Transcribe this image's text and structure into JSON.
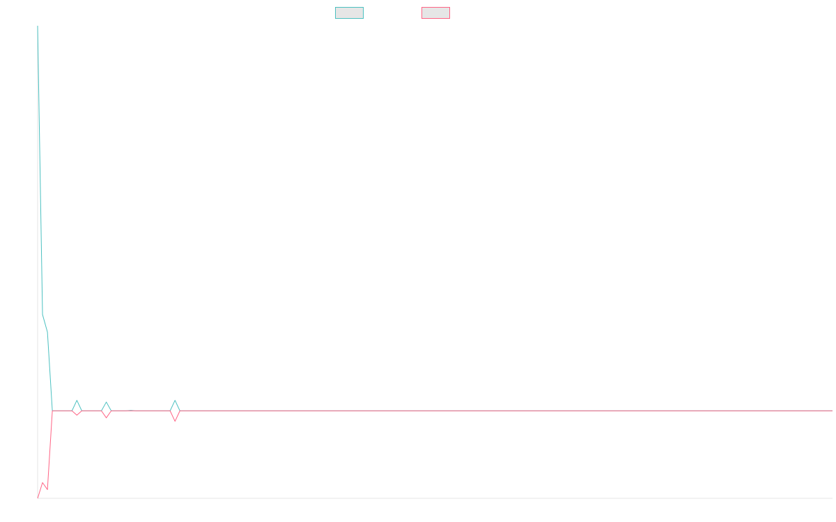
{
  "chart_data": {
    "type": "line",
    "title": "",
    "xlabel": "",
    "ylabel": "",
    "legend_position": "top-center",
    "grid": false,
    "y_axis_visible": true,
    "x_axis_visible": true,
    "x": [
      0,
      1,
      2,
      3,
      4,
      5,
      6,
      7,
      8,
      9,
      10,
      11,
      12,
      13,
      14,
      15,
      16,
      17,
      18,
      19,
      20,
      21,
      22,
      23,
      24,
      25,
      26,
      27,
      28,
      29,
      30,
      31,
      32,
      33,
      34,
      35,
      36,
      37,
      38,
      39,
      40,
      41,
      42,
      43,
      44,
      45,
      46,
      47,
      48,
      49,
      50,
      51,
      52,
      53,
      54,
      55,
      56,
      57,
      58,
      59,
      60,
      61,
      62,
      63,
      64,
      65,
      66,
      67,
      68,
      69,
      70,
      71,
      72,
      73,
      74,
      75,
      76,
      77,
      78,
      79,
      80,
      81,
      82,
      83,
      84,
      85,
      86,
      87,
      88,
      89,
      90,
      91,
      92,
      93,
      94,
      95,
      96,
      97,
      98,
      99,
      100,
      101,
      102,
      103,
      104,
      105,
      106,
      107,
      108,
      109,
      110,
      111,
      112,
      113,
      114,
      115,
      116,
      117,
      118,
      119,
      120,
      121,
      122,
      123,
      124,
      125,
      126,
      127,
      128,
      129,
      130,
      131,
      132,
      133,
      134,
      135,
      136,
      137,
      138,
      139,
      140,
      141,
      142,
      143,
      144,
      145,
      146,
      147,
      148,
      149,
      150,
      151,
      152,
      153,
      154,
      155,
      156,
      157,
      158,
      159,
      160,
      161,
      162
    ],
    "ylim": [
      -1,
      4.4
    ],
    "series": [
      {
        "name": "",
        "color": "#4bc0c0",
        "legend_fill": "#e6e6e6",
        "values": [
          4.4,
          1.1,
          0.9,
          0,
          0,
          0,
          0,
          0,
          0.12,
          0,
          0,
          0,
          0,
          0,
          0.1,
          0,
          0,
          0,
          0,
          0.005,
          0,
          0,
          0,
          0,
          0,
          0,
          0,
          0,
          0.12,
          0,
          0,
          0,
          0,
          0,
          0,
          0,
          0,
          0,
          0,
          0,
          0,
          0,
          0,
          0,
          0,
          0,
          0,
          0,
          0,
          0,
          0,
          0,
          0,
          0,
          0,
          0,
          0,
          0,
          0,
          0,
          0,
          0,
          0,
          0,
          0,
          0,
          0,
          0,
          0,
          0,
          0,
          0,
          0,
          0,
          0,
          0,
          0,
          0,
          0,
          0,
          0,
          0,
          0,
          0,
          0,
          0,
          0,
          0,
          0,
          0,
          0,
          0,
          0,
          0,
          0,
          0,
          0,
          0,
          0,
          0,
          0,
          0,
          0,
          0,
          0,
          0,
          0,
          0,
          0,
          0,
          0,
          0,
          0,
          0,
          0,
          0,
          0,
          0,
          0,
          0,
          0,
          0,
          0,
          0,
          0,
          0,
          0,
          0,
          0,
          0,
          0,
          0,
          0,
          0,
          0,
          0,
          0,
          0,
          0,
          0,
          0,
          0,
          0,
          0,
          0,
          0,
          0,
          0,
          0,
          0,
          0,
          0,
          0,
          0,
          0,
          0,
          0,
          0,
          0,
          0,
          0,
          0,
          0
        ]
      },
      {
        "name": "",
        "color": "#ff6384",
        "legend_fill": "#e6e6e6",
        "values": [
          -1,
          -0.82,
          -0.9,
          0,
          0,
          0,
          0,
          0,
          -0.05,
          0,
          0,
          0,
          0,
          0,
          -0.08,
          0,
          0,
          0,
          0,
          0,
          0,
          0,
          0,
          0,
          0,
          0,
          0,
          0,
          -0.12,
          0,
          0,
          0,
          0,
          0,
          0,
          0,
          0,
          0,
          0,
          0,
          0,
          0,
          0,
          0,
          0,
          0,
          0,
          0,
          0,
          0,
          0,
          0,
          0,
          0,
          0,
          0,
          0,
          0,
          0,
          0,
          0,
          0,
          0,
          0,
          0,
          0,
          0,
          0,
          0,
          0,
          0,
          0,
          0,
          0,
          0,
          0,
          0,
          0,
          0,
          0,
          0,
          0,
          0,
          0,
          0,
          0,
          0,
          0,
          0,
          0,
          0,
          0,
          0,
          0,
          0,
          0,
          0,
          0,
          0,
          0,
          0,
          0,
          0,
          0,
          0,
          0,
          0,
          0,
          0,
          0,
          0,
          0,
          0,
          0,
          0,
          0,
          0,
          0,
          0,
          0,
          0,
          0,
          0,
          0,
          0,
          0,
          0,
          0,
          0,
          0,
          0,
          0,
          0,
          0,
          0,
          0,
          0,
          0,
          0,
          0,
          0,
          0,
          0,
          0,
          0,
          0,
          0,
          0,
          0,
          0,
          0,
          0,
          0,
          0,
          0,
          0,
          0,
          0,
          0,
          0,
          0,
          0,
          0
        ]
      }
    ]
  }
}
